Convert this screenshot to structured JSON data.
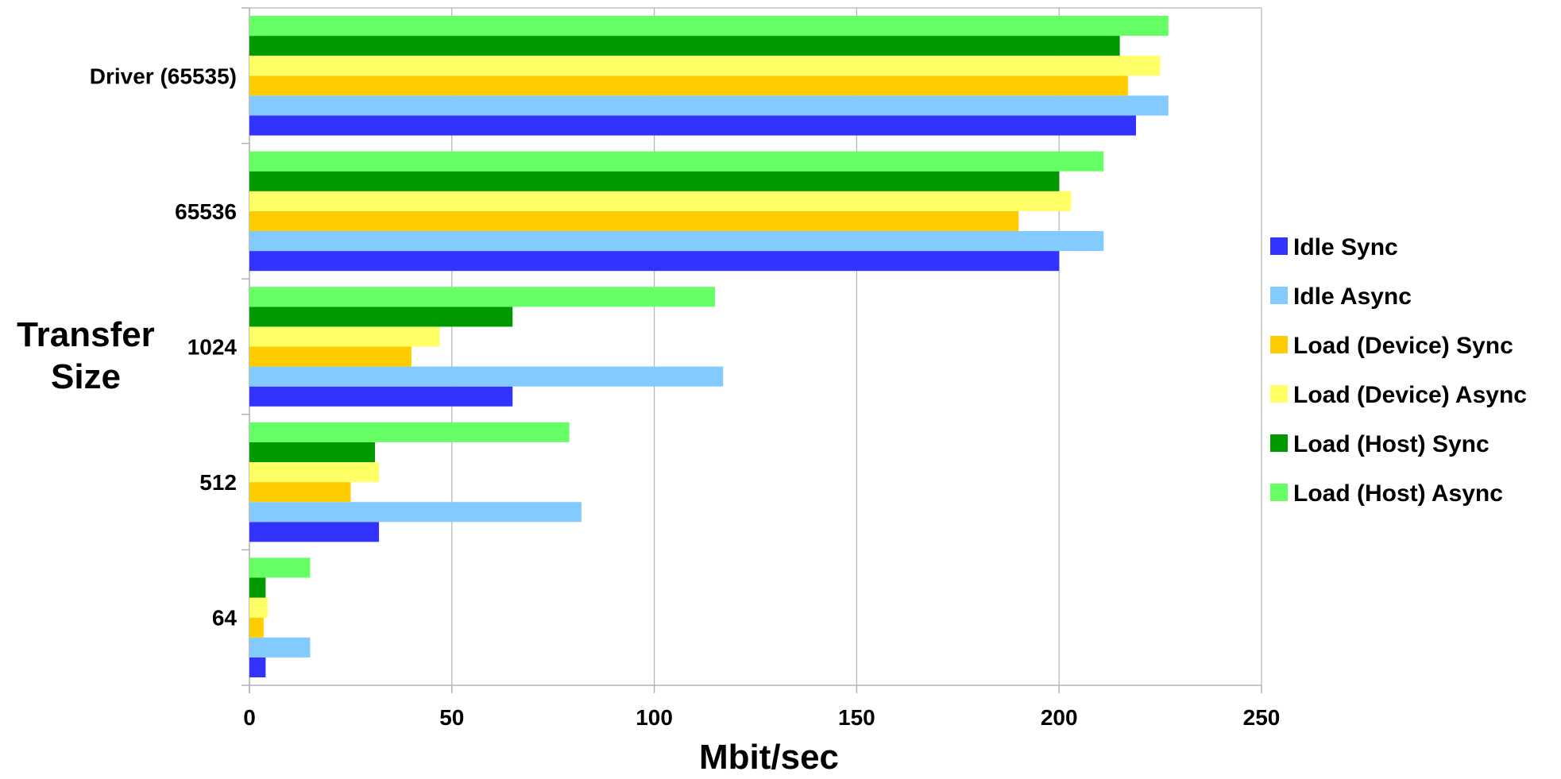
{
  "chart_data": {
    "type": "bar",
    "orientation": "horizontal",
    "title": "",
    "xlabel": "Mbit/sec",
    "ylabel": "Transfer Size",
    "xlim": [
      0,
      250
    ],
    "x_ticks": [
      "0",
      "50",
      "100",
      "150",
      "200",
      "250"
    ],
    "grid": true,
    "legend_position": "right",
    "categories": [
      "Driver (65535)",
      "65536",
      "1024",
      "512",
      "64"
    ],
    "series": [
      {
        "name": "Idle Sync",
        "color": "#3333ff",
        "values": [
          219,
          200,
          65,
          32,
          4
        ]
      },
      {
        "name": "Idle Async",
        "color": "#83caff",
        "values": [
          227,
          211,
          117,
          82,
          15
        ]
      },
      {
        "name": "Load (Device) Sync",
        "color": "#ffcc00",
        "values": [
          217,
          190,
          40,
          25,
          3.5
        ]
      },
      {
        "name": "Load (Device) Async",
        "color": "#ffff66",
        "values": [
          225,
          203,
          47,
          32,
          4.5
        ]
      },
      {
        "name": "Load (Host) Sync",
        "color": "#009900",
        "values": [
          215,
          200,
          65,
          31,
          4
        ]
      },
      {
        "name": "Load (Host) Async",
        "color": "#66ff66",
        "values": [
          227,
          211,
          115,
          79,
          15
        ]
      }
    ]
  }
}
